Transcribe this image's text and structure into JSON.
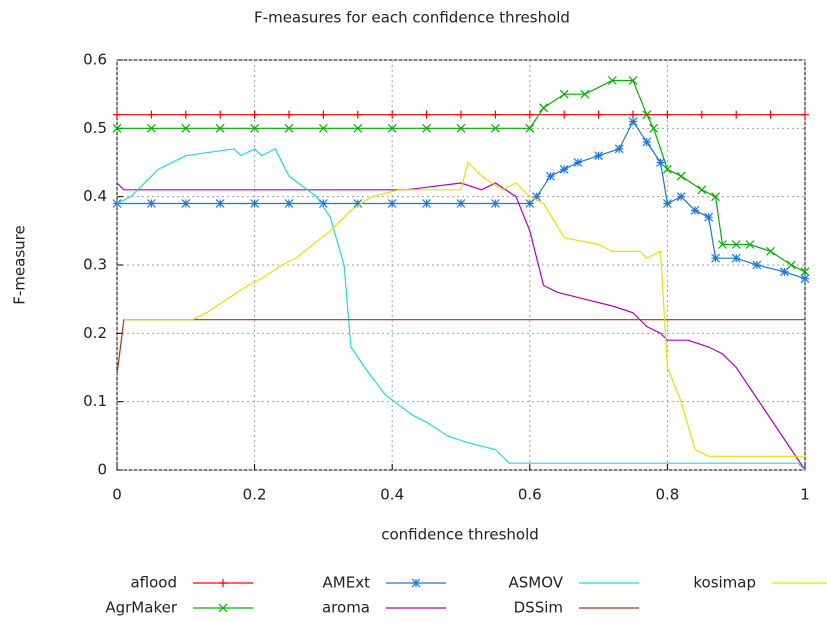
{
  "chart_data": {
    "type": "line",
    "title": "F-measures for each confidence threshold",
    "x_label": "confidence threshold",
    "y_label": "F-measure",
    "xlim": [
      0,
      1
    ],
    "ylim": [
      0,
      0.6
    ],
    "xticks": [
      0,
      0.2,
      0.4,
      0.6,
      0.8,
      1
    ],
    "yticks": [
      0,
      0.1,
      0.2,
      0.3,
      0.4,
      0.5,
      0.6
    ],
    "grid": true,
    "legend": "bottom",
    "series": [
      {
        "name": "aflood",
        "color": "#ff0000",
        "marker": "+",
        "x": [
          0,
          0.05,
          0.1,
          0.15,
          0.2,
          0.25,
          0.3,
          0.35,
          0.4,
          0.45,
          0.5,
          0.55,
          0.6,
          0.65,
          0.7,
          0.75,
          0.8,
          0.85,
          0.9,
          0.95,
          1
        ],
        "values": [
          0.52,
          0.52,
          0.52,
          0.52,
          0.52,
          0.52,
          0.52,
          0.52,
          0.52,
          0.52,
          0.52,
          0.52,
          0.52,
          0.52,
          0.52,
          0.52,
          0.52,
          0.52,
          0.52,
          0.52,
          0.52
        ]
      },
      {
        "name": "AgrMaker",
        "color": "#00b000",
        "marker": "x",
        "x": [
          0,
          0.05,
          0.1,
          0.15,
          0.2,
          0.25,
          0.3,
          0.35,
          0.4,
          0.45,
          0.5,
          0.55,
          0.6,
          0.62,
          0.65,
          0.68,
          0.72,
          0.75,
          0.77,
          0.78,
          0.8,
          0.82,
          0.85,
          0.87,
          0.88,
          0.9,
          0.92,
          0.95,
          0.98,
          1
        ],
        "values": [
          0.5,
          0.5,
          0.5,
          0.5,
          0.5,
          0.5,
          0.5,
          0.5,
          0.5,
          0.5,
          0.5,
          0.5,
          0.5,
          0.53,
          0.55,
          0.55,
          0.57,
          0.57,
          0.52,
          0.5,
          0.44,
          0.43,
          0.41,
          0.4,
          0.33,
          0.33,
          0.33,
          0.32,
          0.3,
          0.29
        ]
      },
      {
        "name": "AMExt",
        "color": "#1e78d8",
        "marker": "*",
        "x": [
          0,
          0.05,
          0.1,
          0.15,
          0.2,
          0.25,
          0.3,
          0.35,
          0.4,
          0.45,
          0.5,
          0.55,
          0.6,
          0.61,
          0.63,
          0.65,
          0.67,
          0.7,
          0.73,
          0.75,
          0.77,
          0.79,
          0.8,
          0.82,
          0.84,
          0.86,
          0.87,
          0.9,
          0.93,
          0.97,
          1
        ],
        "values": [
          0.39,
          0.39,
          0.39,
          0.39,
          0.39,
          0.39,
          0.39,
          0.39,
          0.39,
          0.39,
          0.39,
          0.39,
          0.39,
          0.4,
          0.43,
          0.44,
          0.45,
          0.46,
          0.47,
          0.51,
          0.48,
          0.45,
          0.39,
          0.4,
          0.38,
          0.37,
          0.31,
          0.31,
          0.3,
          0.29,
          0.28
        ]
      },
      {
        "name": "aroma",
        "color": "#b000c0",
        "x": [
          0,
          0.01,
          0.42,
          0.5,
          0.53,
          0.55,
          0.58,
          0.6,
          0.62,
          0.64,
          0.68,
          0.72,
          0.75,
          0.77,
          0.79,
          0.8,
          0.83,
          0.86,
          0.88,
          0.9,
          0.92,
          0.94,
          0.96,
          0.98,
          1
        ],
        "values": [
          0.42,
          0.41,
          0.41,
          0.42,
          0.41,
          0.42,
          0.4,
          0.35,
          0.27,
          0.26,
          0.25,
          0.24,
          0.23,
          0.21,
          0.2,
          0.19,
          0.19,
          0.18,
          0.17,
          0.15,
          0.12,
          0.09,
          0.06,
          0.03,
          0
        ]
      },
      {
        "name": "ASMOV",
        "color": "#20d8e8",
        "x": [
          0,
          0.02,
          0.06,
          0.1,
          0.17,
          0.18,
          0.2,
          0.21,
          0.23,
          0.25,
          0.29,
          0.31,
          0.33,
          0.34,
          0.36,
          0.39,
          0.43,
          0.45,
          0.48,
          0.51,
          0.55,
          0.57,
          0.99,
          1
        ],
        "values": [
          0.39,
          0.4,
          0.44,
          0.46,
          0.47,
          0.46,
          0.47,
          0.46,
          0.47,
          0.43,
          0.4,
          0.37,
          0.3,
          0.18,
          0.15,
          0.11,
          0.08,
          0.07,
          0.05,
          0.04,
          0.03,
          0.01,
          0.01,
          0
        ]
      },
      {
        "name": "DSSim",
        "color": "#b03010",
        "x": [
          0,
          0.01,
          1
        ],
        "values": [
          0.14,
          0.22,
          0.22
        ]
      },
      {
        "name": "kosimap",
        "color": "#e8e000",
        "x": [
          0.01,
          0.11,
          0.13,
          0.16,
          0.19,
          0.21,
          0.24,
          0.26,
          0.31,
          0.34,
          0.37,
          0.41,
          0.5,
          0.51,
          0.53,
          0.56,
          0.58,
          0.6,
          0.62,
          0.65,
          0.7,
          0.72,
          0.76,
          0.77,
          0.79,
          0.8,
          0.82,
          0.84,
          0.86,
          1
        ],
        "values": [
          0.22,
          0.22,
          0.23,
          0.25,
          0.27,
          0.28,
          0.3,
          0.31,
          0.35,
          0.38,
          0.4,
          0.41,
          0.41,
          0.45,
          0.43,
          0.41,
          0.42,
          0.4,
          0.39,
          0.34,
          0.33,
          0.32,
          0.32,
          0.31,
          0.32,
          0.15,
          0.1,
          0.03,
          0.02,
          0.02
        ]
      }
    ]
  }
}
